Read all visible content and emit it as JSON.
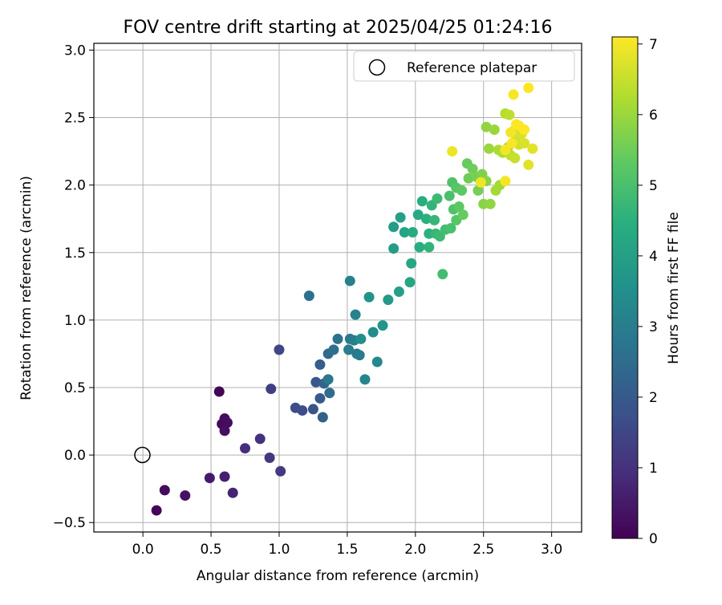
{
  "chart_data": {
    "type": "scatter",
    "title": "FOV centre drift starting at 2025/04/25 01:24:16",
    "xlabel": "Angular distance from reference (arcmin)",
    "ylabel": "Rotation from reference (arcmin)",
    "xlim": [
      -0.36,
      3.22
    ],
    "ylim": [
      -0.57,
      3.05
    ],
    "xticks": [
      "0.0",
      "0.5",
      "1.0",
      "1.5",
      "2.0",
      "2.5",
      "3.0"
    ],
    "yticks": [
      "−0.5",
      "0.0",
      "0.5",
      "1.0",
      "1.5",
      "2.0",
      "2.5",
      "3.0"
    ],
    "grid": true,
    "colorscale": "viridis",
    "colorbar": {
      "label": "Hours from first FF file",
      "range": [
        0,
        7.1
      ],
      "ticks": [
        "0",
        "1",
        "2",
        "3",
        "4",
        "5",
        "6",
        "7"
      ]
    },
    "legend": {
      "placement": "top-right",
      "label": "Reference platepar"
    },
    "reference_point": {
      "x": 0.0,
      "y": 0.0
    },
    "points": [
      {
        "x": 0.1,
        "y": -0.41,
        "c": 0.1
      },
      {
        "x": 0.16,
        "y": -0.26,
        "c": 0.2
      },
      {
        "x": 0.31,
        "y": -0.3,
        "c": 0.35
      },
      {
        "x": 0.49,
        "y": -0.17,
        "c": 0.5
      },
      {
        "x": 0.6,
        "y": -0.16,
        "c": 0.6
      },
      {
        "x": 0.66,
        "y": -0.28,
        "c": 0.7
      },
      {
        "x": 0.56,
        "y": 0.47,
        "c": 0.05
      },
      {
        "x": 0.58,
        "y": 0.23,
        "c": 0.15
      },
      {
        "x": 0.6,
        "y": 0.27,
        "c": 0.2
      },
      {
        "x": 0.62,
        "y": 0.24,
        "c": 0.25
      },
      {
        "x": 0.6,
        "y": 0.18,
        "c": 0.3
      },
      {
        "x": 0.75,
        "y": 0.05,
        "c": 0.9
      },
      {
        "x": 0.86,
        "y": 0.12,
        "c": 1.0
      },
      {
        "x": 0.93,
        "y": -0.02,
        "c": 1.1
      },
      {
        "x": 1.01,
        "y": -0.12,
        "c": 1.2
      },
      {
        "x": 0.94,
        "y": 0.49,
        "c": 1.3
      },
      {
        "x": 1.0,
        "y": 0.78,
        "c": 1.5
      },
      {
        "x": 1.12,
        "y": 0.35,
        "c": 1.6
      },
      {
        "x": 1.17,
        "y": 0.33,
        "c": 1.7
      },
      {
        "x": 1.25,
        "y": 0.34,
        "c": 1.8
      },
      {
        "x": 1.27,
        "y": 0.54,
        "c": 1.9
      },
      {
        "x": 1.3,
        "y": 0.42,
        "c": 2.0
      },
      {
        "x": 1.3,
        "y": 0.67,
        "c": 2.1
      },
      {
        "x": 1.32,
        "y": 0.28,
        "c": 2.2
      },
      {
        "x": 1.33,
        "y": 0.53,
        "c": 2.3
      },
      {
        "x": 1.36,
        "y": 0.75,
        "c": 2.4
      },
      {
        "x": 1.37,
        "y": 0.46,
        "c": 2.5
      },
      {
        "x": 1.22,
        "y": 1.18,
        "c": 2.6
      },
      {
        "x": 1.4,
        "y": 0.78,
        "c": 2.6
      },
      {
        "x": 1.43,
        "y": 0.86,
        "c": 2.7
      },
      {
        "x": 1.36,
        "y": 0.56,
        "c": 2.8
      },
      {
        "x": 1.52,
        "y": 0.86,
        "c": 2.8
      },
      {
        "x": 1.57,
        "y": 0.75,
        "c": 2.9
      },
      {
        "x": 1.59,
        "y": 0.74,
        "c": 2.95
      },
      {
        "x": 1.51,
        "y": 0.78,
        "c": 3.0
      },
      {
        "x": 1.55,
        "y": 0.85,
        "c": 3.05
      },
      {
        "x": 1.52,
        "y": 1.29,
        "c": 3.1
      },
      {
        "x": 1.56,
        "y": 1.04,
        "c": 3.15
      },
      {
        "x": 1.63,
        "y": 0.56,
        "c": 3.2
      },
      {
        "x": 1.72,
        "y": 0.69,
        "c": 3.3
      },
      {
        "x": 1.69,
        "y": 0.91,
        "c": 3.4
      },
      {
        "x": 1.6,
        "y": 0.86,
        "c": 3.5
      },
      {
        "x": 1.66,
        "y": 1.17,
        "c": 3.6
      },
      {
        "x": 1.76,
        "y": 0.96,
        "c": 3.7
      },
      {
        "x": 1.8,
        "y": 1.15,
        "c": 3.8
      },
      {
        "x": 1.84,
        "y": 1.53,
        "c": 3.9
      },
      {
        "x": 1.88,
        "y": 1.21,
        "c": 4.0
      },
      {
        "x": 1.84,
        "y": 1.69,
        "c": 3.9
      },
      {
        "x": 1.89,
        "y": 1.76,
        "c": 4.0
      },
      {
        "x": 1.92,
        "y": 1.65,
        "c": 4.1
      },
      {
        "x": 1.96,
        "y": 1.28,
        "c": 4.2
      },
      {
        "x": 1.97,
        "y": 1.42,
        "c": 4.2
      },
      {
        "x": 1.98,
        "y": 1.65,
        "c": 4.3
      },
      {
        "x": 2.02,
        "y": 1.78,
        "c": 4.3
      },
      {
        "x": 2.03,
        "y": 1.54,
        "c": 4.4
      },
      {
        "x": 2.05,
        "y": 1.88,
        "c": 4.4
      },
      {
        "x": 2.08,
        "y": 1.75,
        "c": 4.5
      },
      {
        "x": 2.1,
        "y": 1.64,
        "c": 4.5
      },
      {
        "x": 2.1,
        "y": 1.54,
        "c": 4.6
      },
      {
        "x": 2.12,
        "y": 1.85,
        "c": 4.6
      },
      {
        "x": 2.14,
        "y": 1.74,
        "c": 4.7
      },
      {
        "x": 2.15,
        "y": 1.64,
        "c": 4.7
      },
      {
        "x": 2.16,
        "y": 1.9,
        "c": 4.8
      },
      {
        "x": 2.18,
        "y": 1.62,
        "c": 4.8
      },
      {
        "x": 2.2,
        "y": 1.34,
        "c": 4.9
      },
      {
        "x": 2.22,
        "y": 1.67,
        "c": 4.9
      },
      {
        "x": 2.26,
        "y": 1.68,
        "c": 5.0
      },
      {
        "x": 2.25,
        "y": 1.92,
        "c": 5.0
      },
      {
        "x": 2.27,
        "y": 2.02,
        "c": 5.1
      },
      {
        "x": 2.28,
        "y": 1.82,
        "c": 5.1
      },
      {
        "x": 2.3,
        "y": 1.74,
        "c": 5.2
      },
      {
        "x": 2.3,
        "y": 1.98,
        "c": 5.2
      },
      {
        "x": 2.32,
        "y": 1.84,
        "c": 5.3
      },
      {
        "x": 2.34,
        "y": 1.96,
        "c": 5.3
      },
      {
        "x": 2.35,
        "y": 1.78,
        "c": 5.4
      },
      {
        "x": 2.38,
        "y": 2.16,
        "c": 5.4
      },
      {
        "x": 2.39,
        "y": 2.05,
        "c": 5.5
      },
      {
        "x": 2.42,
        "y": 2.12,
        "c": 5.5
      },
      {
        "x": 2.45,
        "y": 2.06,
        "c": 5.6
      },
      {
        "x": 2.46,
        "y": 1.96,
        "c": 5.6
      },
      {
        "x": 2.48,
        "y": 2.02,
        "c": 5.7
      },
      {
        "x": 2.49,
        "y": 2.08,
        "c": 5.7
      },
      {
        "x": 2.5,
        "y": 1.86,
        "c": 5.8
      },
      {
        "x": 2.52,
        "y": 2.03,
        "c": 5.8
      },
      {
        "x": 2.55,
        "y": 1.86,
        "c": 5.9
      },
      {
        "x": 2.52,
        "y": 2.43,
        "c": 5.9
      },
      {
        "x": 2.54,
        "y": 2.27,
        "c": 6.0
      },
      {
        "x": 2.58,
        "y": 2.41,
        "c": 6.0
      },
      {
        "x": 2.59,
        "y": 1.96,
        "c": 6.1
      },
      {
        "x": 2.62,
        "y": 2.0,
        "c": 6.1
      },
      {
        "x": 2.61,
        "y": 2.26,
        "c": 6.2
      },
      {
        "x": 2.64,
        "y": 2.24,
        "c": 6.2
      },
      {
        "x": 2.66,
        "y": 2.53,
        "c": 6.3
      },
      {
        "x": 2.68,
        "y": 2.28,
        "c": 6.3
      },
      {
        "x": 2.69,
        "y": 2.52,
        "c": 6.4
      },
      {
        "x": 2.7,
        "y": 2.22,
        "c": 6.4
      },
      {
        "x": 2.72,
        "y": 2.4,
        "c": 6.5
      },
      {
        "x": 2.73,
        "y": 2.2,
        "c": 6.5
      },
      {
        "x": 2.74,
        "y": 2.36,
        "c": 6.6
      },
      {
        "x": 2.76,
        "y": 2.3,
        "c": 6.6
      },
      {
        "x": 2.78,
        "y": 2.38,
        "c": 6.7
      },
      {
        "x": 2.8,
        "y": 2.31,
        "c": 6.7
      },
      {
        "x": 2.83,
        "y": 2.15,
        "c": 6.8
      },
      {
        "x": 2.86,
        "y": 2.27,
        "c": 6.8
      },
      {
        "x": 2.27,
        "y": 2.25,
        "c": 6.9
      },
      {
        "x": 2.48,
        "y": 2.02,
        "c": 6.95
      },
      {
        "x": 2.66,
        "y": 2.26,
        "c": 7.0
      },
      {
        "x": 2.66,
        "y": 2.03,
        "c": 7.0
      },
      {
        "x": 2.7,
        "y": 2.39,
        "c": 7.0
      },
      {
        "x": 2.71,
        "y": 2.31,
        "c": 7.05
      },
      {
        "x": 2.72,
        "y": 2.67,
        "c": 7.05
      },
      {
        "x": 2.74,
        "y": 2.45,
        "c": 7.08
      },
      {
        "x": 2.76,
        "y": 2.44,
        "c": 7.1
      },
      {
        "x": 2.8,
        "y": 2.41,
        "c": 7.1
      },
      {
        "x": 2.83,
        "y": 2.72,
        "c": 7.1
      }
    ]
  }
}
